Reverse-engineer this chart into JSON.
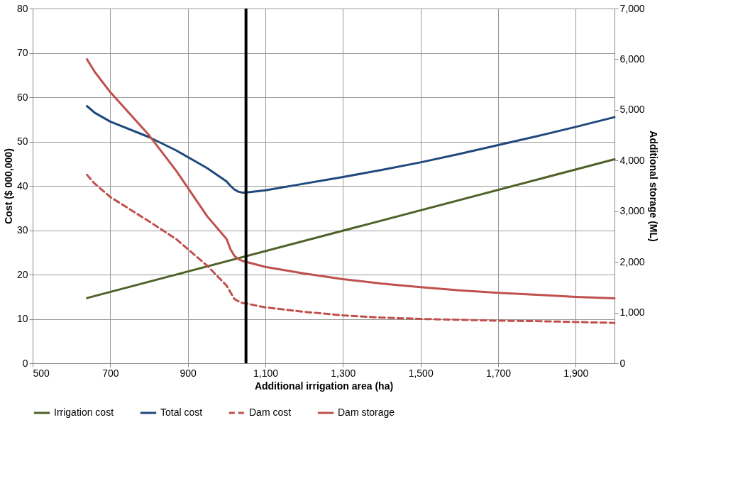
{
  "chart_data": {
    "type": "line",
    "xlabel": "Additional irrigation area (ha)",
    "ylabel": "Cost ($ 000,000)",
    "y2label": "Additional storage (ML)",
    "xlim": [
      500,
      2000
    ],
    "xticks": [
      500,
      700,
      900,
      {
        "value": 1100,
        "label": "1,100"
      },
      {
        "value": 1300,
        "label": "1,300"
      },
      {
        "value": 1500,
        "label": "1,500"
      },
      {
        "value": 1700,
        "label": "1,700"
      },
      {
        "value": 1900,
        "label": "1,900"
      }
    ],
    "ylim": [
      0,
      80
    ],
    "yticks": [
      0,
      10,
      20,
      30,
      40,
      50,
      60,
      70,
      80
    ],
    "y2lim": [
      0,
      7000
    ],
    "y2ticks": [
      0,
      {
        "value": 1000,
        "label": "1,000"
      },
      {
        "value": 2000,
        "label": "2,000"
      },
      {
        "value": 3000,
        "label": "3,000"
      },
      {
        "value": 4000,
        "label": "4,000"
      },
      {
        "value": 5000,
        "label": "5,000"
      },
      {
        "value": 6000,
        "label": "6,000"
      },
      {
        "value": 7000,
        "label": "7,000"
      }
    ],
    "grid": true,
    "legend": "bottom",
    "marker": "none",
    "x": [
      640,
      660,
      700,
      800,
      870,
      950,
      1000,
      1010,
      1020,
      1030,
      1040,
      1050,
      1060,
      1100,
      1200,
      1300,
      1400,
      1500,
      1600,
      1700,
      1800,
      1900,
      2000
    ],
    "series": [
      {
        "name": "Irrigation cost",
        "color": "#4f6228",
        "line_style": "solid",
        "x": [
          640,
          2000
        ],
        "values": [
          14.7,
          46
        ]
      },
      {
        "name": "Total cost",
        "color": "#1f497d",
        "line_style": "solid",
        "values": [
          58,
          56.5,
          54.5,
          51,
          48,
          44,
          41,
          40,
          39.2,
          38.7,
          38.5,
          38.5,
          38.6,
          39,
          40.5,
          42,
          43.6,
          45.3,
          47.2,
          49.2,
          51.2,
          53.3,
          55.5
        ]
      },
      {
        "name": "Dam cost",
        "color": "#c0504d",
        "line_style": "dashed",
        "values": [
          42.5,
          40.5,
          37.5,
          32,
          28,
          22,
          17.5,
          16,
          14.5,
          14,
          13.6,
          13.5,
          13.3,
          12.6,
          11.6,
          10.8,
          10.3,
          10,
          9.8,
          9.6,
          9.5,
          9.3,
          9.1
        ]
      },
      {
        "name": "Dam storage",
        "color": "#c0504d",
        "line_style": "solid",
        "axis": "y2",
        "values": [
          6000,
          5750,
          5350,
          4500,
          3800,
          2900,
          2450,
          2250,
          2120,
          2060,
          2020,
          2000,
          1980,
          1900,
          1770,
          1660,
          1570,
          1500,
          1440,
          1390,
          1350,
          1310,
          1280
        ]
      }
    ],
    "ref_lines": [
      {
        "axis": "x",
        "value": 1050,
        "color": "#000000"
      }
    ]
  }
}
